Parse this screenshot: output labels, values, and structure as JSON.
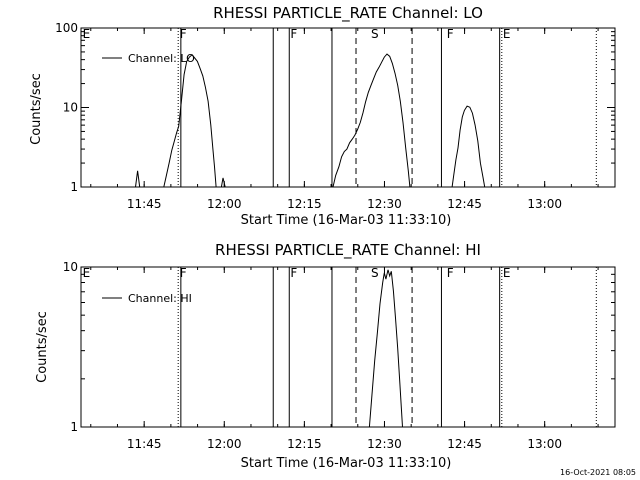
{
  "colors": {
    "background": "#ffffff",
    "foreground": "#000000"
  },
  "timestamp": "16-Oct-2021 08:05",
  "chart_data": [
    {
      "type": "line",
      "title": "RHESSI PARTICLE_RATE Channel: LO",
      "xlabel": "Start Time (16-Mar-03 11:33:10)",
      "ylabel": "Counts/sec",
      "yscale": "log",
      "ylim": [
        1,
        100
      ],
      "xlim_minutes": [
        0,
        100
      ],
      "x_ticks": [
        {
          "minute": 11.83,
          "label": "11:45"
        },
        {
          "minute": 26.83,
          "label": "12:00"
        },
        {
          "minute": 41.83,
          "label": "12:15"
        },
        {
          "minute": 56.83,
          "label": "12:30"
        },
        {
          "minute": 71.83,
          "label": "12:45"
        },
        {
          "minute": 86.83,
          "label": "13:00"
        }
      ],
      "y_ticks": [
        {
          "value": 1,
          "label": "1"
        },
        {
          "value": 10,
          "label": "10"
        },
        {
          "value": 100,
          "label": "100"
        }
      ],
      "legend": {
        "label": "Channel: LO",
        "position": "top-left"
      },
      "flags": [
        {
          "label": "E",
          "minute": 0.3
        },
        {
          "label": "F",
          "minute": 18.5
        },
        {
          "label": "F",
          "minute": 39.2
        },
        {
          "label": "S",
          "minute": 54.3
        },
        {
          "label": "F",
          "minute": 68.5
        },
        {
          "label": "E",
          "minute": 79.0
        }
      ],
      "events": [
        {
          "kind": "dotted",
          "minute": 18.2
        },
        {
          "kind": "solid",
          "minute": 18.7
        },
        {
          "kind": "solid",
          "minute": 36.0
        },
        {
          "kind": "solid",
          "minute": 39.0
        },
        {
          "kind": "solid",
          "minute": 47.0
        },
        {
          "kind": "dashed",
          "minute": 51.5
        },
        {
          "kind": "dashed",
          "minute": 62.0
        },
        {
          "kind": "solid",
          "minute": 67.5
        },
        {
          "kind": "solid",
          "minute": 78.4
        },
        {
          "kind": "dotted",
          "minute": 78.8
        },
        {
          "kind": "dotted",
          "minute": 96.5
        }
      ],
      "series": [
        {
          "name": "Channel: LO",
          "points": [
            [
              10.2,
              1
            ],
            [
              10.6,
              1.6
            ],
            [
              11.0,
              1
            ]
          ]
        },
        {
          "name": "Channel: LO",
          "points": [
            [
              15.5,
              1
            ],
            [
              16.0,
              1.4
            ],
            [
              16.5,
              2.0
            ],
            [
              17.0,
              2.9
            ],
            [
              17.5,
              3.8
            ],
            [
              17.9,
              4.8
            ],
            [
              18.3,
              5.8
            ],
            [
              18.8,
              12
            ],
            [
              19.3,
              26
            ],
            [
              19.8,
              38
            ],
            [
              20.3,
              43
            ],
            [
              20.8,
              46
            ],
            [
              21.3,
              42
            ],
            [
              21.8,
              38
            ],
            [
              22.3,
              31
            ],
            [
              22.8,
              25
            ],
            [
              23.3,
              18
            ],
            [
              23.8,
              12
            ],
            [
              24.3,
              6
            ],
            [
              24.7,
              3
            ],
            [
              25.0,
              1.8
            ],
            [
              25.3,
              1
            ]
          ]
        },
        {
          "name": "Channel: LO",
          "points": [
            [
              26.3,
              1
            ],
            [
              26.6,
              1.3
            ],
            [
              27.0,
              1
            ]
          ]
        },
        {
          "name": "Channel: LO",
          "points": [
            [
              47.2,
              1
            ],
            [
              47.7,
              1.4
            ],
            [
              48.3,
              1.8
            ],
            [
              48.8,
              2.4
            ],
            [
              49.3,
              2.8
            ],
            [
              49.8,
              3.0
            ],
            [
              50.3,
              3.6
            ],
            [
              50.8,
              4.0
            ],
            [
              51.3,
              4.5
            ],
            [
              51.8,
              5.3
            ],
            [
              52.3,
              6.5
            ],
            [
              52.8,
              8.6
            ],
            [
              53.3,
              11.8
            ],
            [
              53.8,
              15.5
            ],
            [
              54.3,
              19
            ],
            [
              54.8,
              23
            ],
            [
              55.3,
              28
            ],
            [
              55.8,
              32
            ],
            [
              56.3,
              37
            ],
            [
              56.8,
              43
            ],
            [
              57.3,
              47
            ],
            [
              57.8,
              44
            ],
            [
              58.3,
              36
            ],
            [
              58.8,
              27
            ],
            [
              59.3,
              19
            ],
            [
              59.8,
              12
            ],
            [
              60.3,
              6.5
            ],
            [
              60.8,
              3.1
            ],
            [
              61.3,
              1.6
            ],
            [
              61.6,
              1
            ]
          ]
        },
        {
          "name": "Channel: LO",
          "points": [
            [
              69.5,
              1
            ],
            [
              69.8,
              1.4
            ],
            [
              70.2,
              2.2
            ],
            [
              70.6,
              3.1
            ],
            [
              71.0,
              5.2
            ],
            [
              71.4,
              7.6
            ],
            [
              71.8,
              9.2
            ],
            [
              72.3,
              10.4
            ],
            [
              72.8,
              10.1
            ],
            [
              73.3,
              8.5
            ],
            [
              73.8,
              6.0
            ],
            [
              74.3,
              3.8
            ],
            [
              74.8,
              2.0
            ],
            [
              75.3,
              1.3
            ],
            [
              75.6,
              1
            ]
          ]
        }
      ]
    },
    {
      "type": "line",
      "title": "RHESSI PARTICLE_RATE Channel: HI",
      "xlabel": "Start Time (16-Mar-03 11:33:10)",
      "ylabel": "Counts/sec",
      "yscale": "log",
      "ylim": [
        1,
        10
      ],
      "xlim_minutes": [
        0,
        100
      ],
      "x_ticks": [
        {
          "minute": 11.83,
          "label": "11:45"
        },
        {
          "minute": 26.83,
          "label": "12:00"
        },
        {
          "minute": 41.83,
          "label": "12:15"
        },
        {
          "minute": 56.83,
          "label": "12:30"
        },
        {
          "minute": 71.83,
          "label": "12:45"
        },
        {
          "minute": 86.83,
          "label": "13:00"
        }
      ],
      "y_ticks": [
        {
          "value": 1,
          "label": "1"
        },
        {
          "value": 10,
          "label": "10"
        }
      ],
      "legend": {
        "label": "Channel: HI",
        "position": "top-left"
      },
      "flags": [
        {
          "label": "E",
          "minute": 0.3
        },
        {
          "label": "F",
          "minute": 18.5
        },
        {
          "label": "F",
          "minute": 39.2
        },
        {
          "label": "S",
          "minute": 54.3
        },
        {
          "label": "F",
          "minute": 68.5
        },
        {
          "label": "E",
          "minute": 79.0
        }
      ],
      "events": [
        {
          "kind": "dotted",
          "minute": 18.2
        },
        {
          "kind": "solid",
          "minute": 18.7
        },
        {
          "kind": "solid",
          "minute": 36.0
        },
        {
          "kind": "solid",
          "minute": 39.0
        },
        {
          "kind": "solid",
          "minute": 47.0
        },
        {
          "kind": "dashed",
          "minute": 51.5
        },
        {
          "kind": "dashed",
          "minute": 62.0
        },
        {
          "kind": "solid",
          "minute": 67.5
        },
        {
          "kind": "solid",
          "minute": 78.4
        },
        {
          "kind": "dotted",
          "minute": 78.8
        },
        {
          "kind": "dotted",
          "minute": 96.5
        }
      ],
      "series": [
        {
          "name": "Channel: HI",
          "points": [
            [
              54.0,
              1
            ],
            [
              54.5,
              1.6
            ],
            [
              55.0,
              2.6
            ],
            [
              55.5,
              3.9
            ],
            [
              56.0,
              5.9
            ],
            [
              56.5,
              8.0
            ],
            [
              56.8,
              9.2
            ],
            [
              57.1,
              8.4
            ],
            [
              57.5,
              9.6
            ],
            [
              57.8,
              8.8
            ],
            [
              58.1,
              9.4
            ],
            [
              58.5,
              7.1
            ],
            [
              58.9,
              4.8
            ],
            [
              59.3,
              3.1
            ],
            [
              59.7,
              1.9
            ],
            [
              60.0,
              1.3
            ],
            [
              60.2,
              1
            ]
          ]
        }
      ]
    }
  ]
}
